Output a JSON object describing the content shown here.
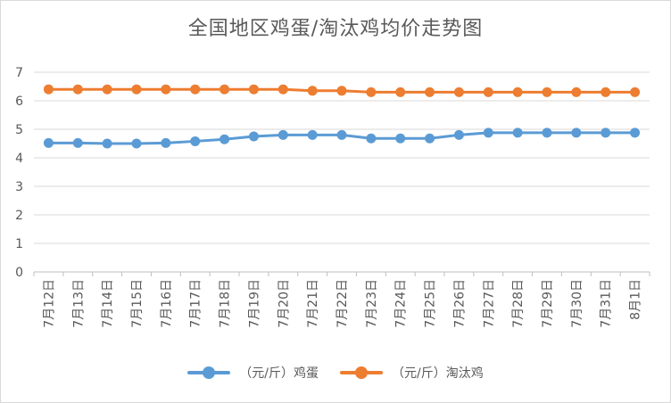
{
  "chart_data": {
    "type": "line",
    "title": "全国地区鸡蛋/淘汰鸡均价走势图",
    "categories": [
      "7月12日",
      "7月13日",
      "7月14日",
      "7月15日",
      "7月16日",
      "7月17日",
      "7月18日",
      "7月19日",
      "7月20日",
      "7月21日",
      "7月22日",
      "7月23日",
      "7月24日",
      "7月25日",
      "7月26日",
      "7月27日",
      "7月28日",
      "7月29日",
      "7月30日",
      "7月31日",
      "8月1日"
    ],
    "series": [
      {
        "name": "（元/斤）鸡蛋",
        "color": "#5B9BD5",
        "values": [
          4.52,
          4.52,
          4.5,
          4.5,
          4.52,
          4.58,
          4.65,
          4.75,
          4.8,
          4.8,
          4.8,
          4.68,
          4.68,
          4.68,
          4.8,
          4.88,
          4.88,
          4.88,
          4.88,
          4.88,
          4.88
        ]
      },
      {
        "name": "（元/斤）淘汰鸡",
        "color": "#ED7D31",
        "values": [
          6.4,
          6.4,
          6.4,
          6.4,
          6.4,
          6.4,
          6.4,
          6.4,
          6.4,
          6.35,
          6.35,
          6.3,
          6.3,
          6.3,
          6.3,
          6.3,
          6.3,
          6.3,
          6.3,
          6.3,
          6.3
        ]
      }
    ],
    "yticks": [
      "0",
      "1",
      "2",
      "3",
      "4",
      "5",
      "6",
      "7"
    ],
    "ylim": [
      0,
      7
    ],
    "grid": true,
    "legend": "bottom"
  }
}
